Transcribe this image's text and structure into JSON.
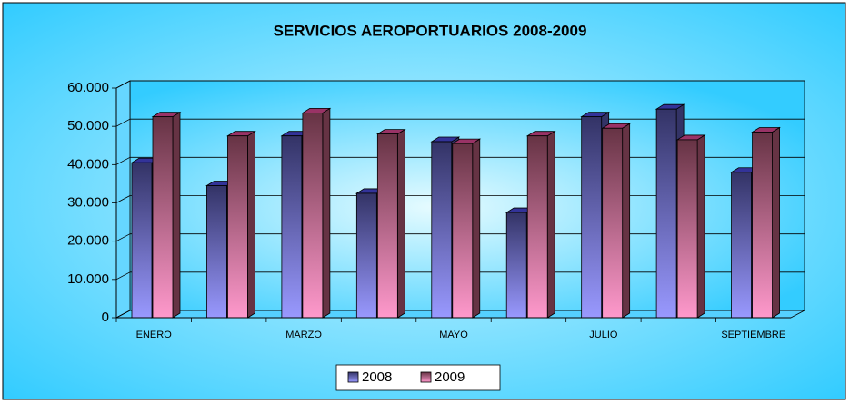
{
  "chart_data": {
    "type": "bar",
    "title": "SERVICIOS AEROPORTUARIOS 2008-2009",
    "categories": [
      "ENERO",
      null,
      "MARZO",
      null,
      "MAYO",
      null,
      "JULIO",
      null,
      "SEPTIEMBRE"
    ],
    "series": [
      {
        "name": "2008",
        "color": "#9999ff",
        "values": [
          40500,
          34500,
          47500,
          32500,
          46000,
          27500,
          52500,
          54500,
          38000
        ]
      },
      {
        "name": "2009",
        "color": "#ff99cc",
        "values": [
          52500,
          47500,
          53500,
          48000,
          45500,
          47500,
          49500,
          46500,
          48500
        ]
      }
    ],
    "ylim": [
      0,
      60000
    ],
    "yticks": [
      0,
      {
        "value": 10000,
        "label": "10.000"
      },
      {
        "value": 20000,
        "label": "20.000"
      },
      {
        "value": 30000,
        "label": "30.000"
      },
      {
        "value": 40000,
        "label": "40.000"
      },
      {
        "value": 50000,
        "label": "50.000"
      },
      {
        "value": 60000,
        "label": "60.000"
      }
    ],
    "grid": true,
    "legend": "bottom"
  }
}
